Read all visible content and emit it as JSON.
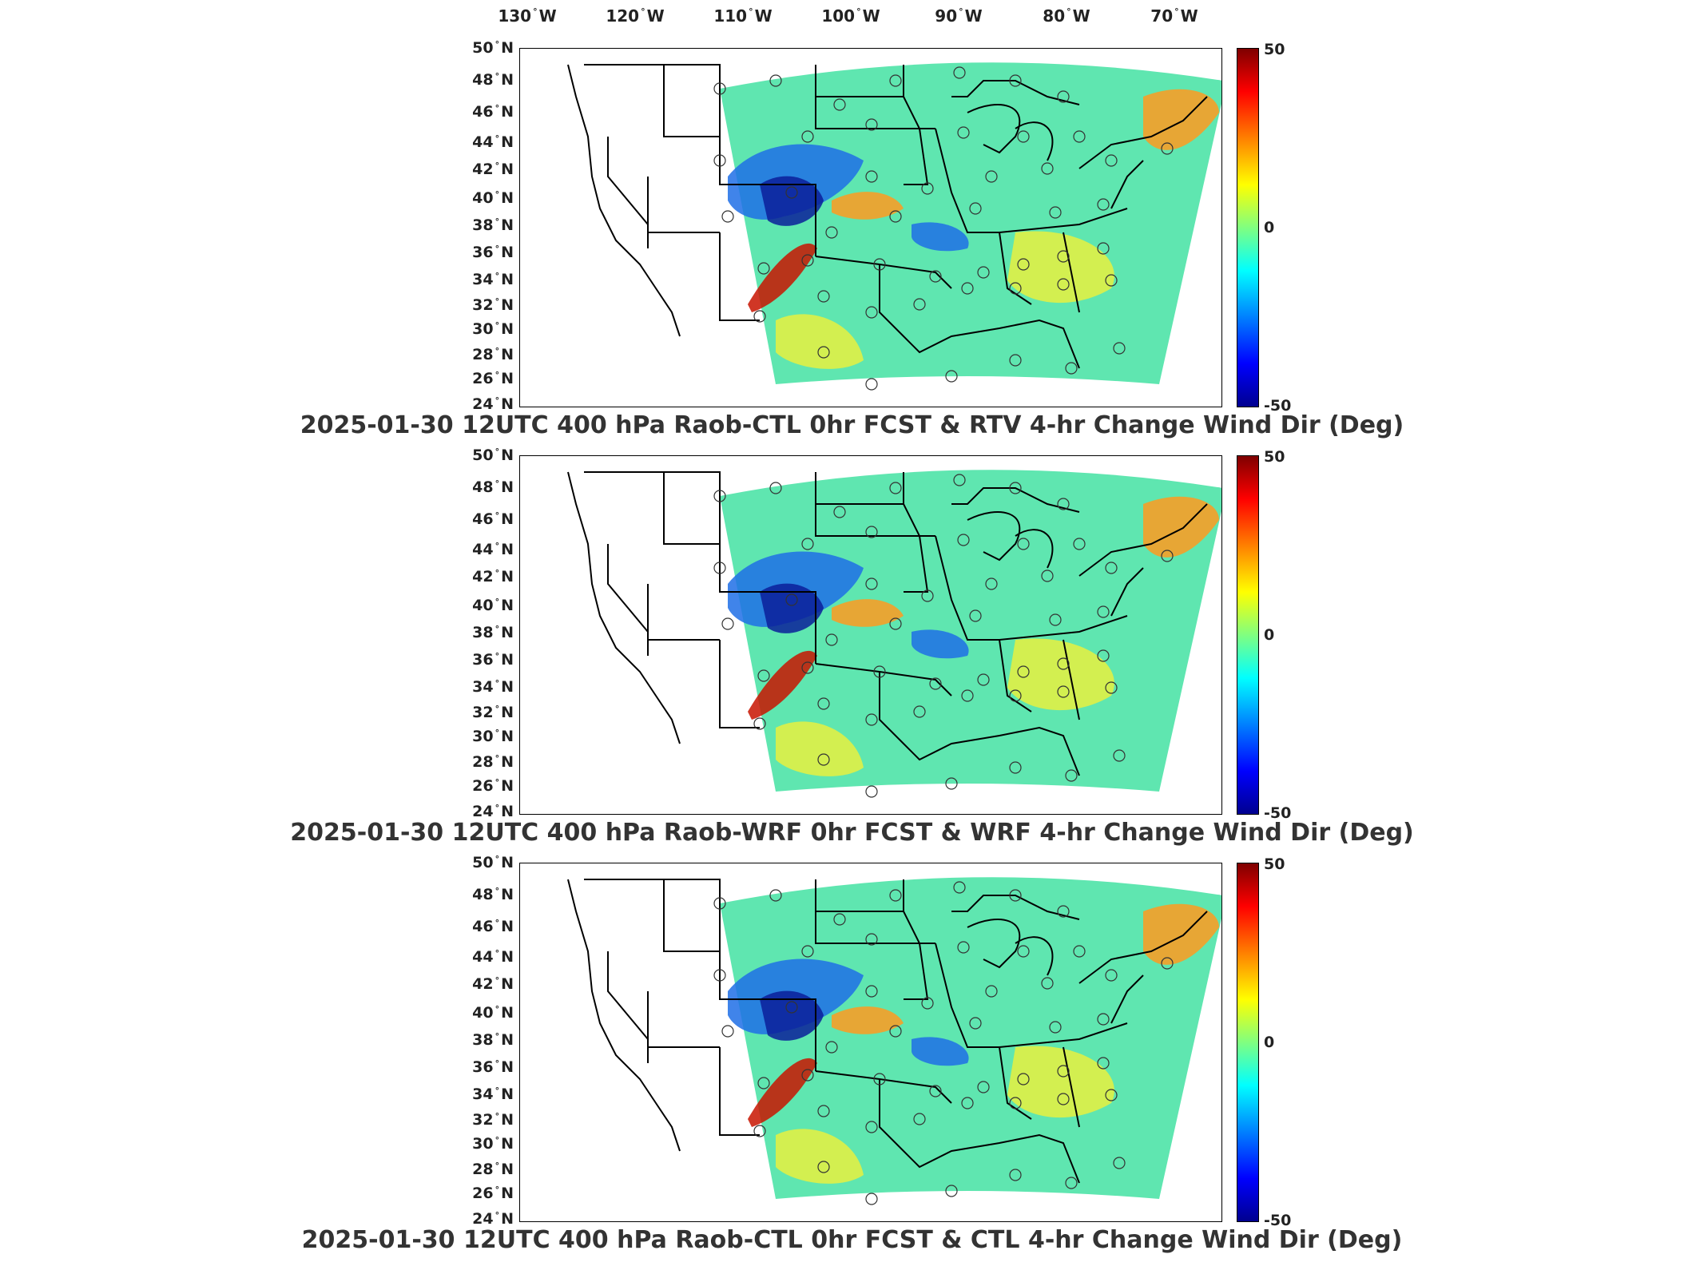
{
  "longitude_labels": [
    "130",
    "120",
    "110",
    "100",
    "90",
    "80",
    "70"
  ],
  "longitude_hemisphere": "W",
  "latitude_labels": [
    "50",
    "48",
    "46",
    "44",
    "42",
    "40",
    "38",
    "36",
    "34",
    "32",
    "30",
    "28",
    "26",
    "24"
  ],
  "latitude_hemisphere": "N",
  "degree_symbol": "°",
  "colorbar": {
    "max": "50",
    "mid": "0",
    "min": "-50",
    "colors": [
      "#7f0000",
      "#ff0000",
      "#ff8000",
      "#ffff00",
      "#80ff80",
      "#00ffff",
      "#0080ff",
      "#0000ff",
      "#00008f"
    ]
  },
  "panels": [
    {
      "title": "2025-01-30 12UTC 400 hPa Raob-CTL 0hr FCST & RTV 4-hr Change Wind Dir (Deg)"
    },
    {
      "title": "2025-01-30 12UTC 400 hPa Raob-WRF 0hr FCST & WRF 4-hr Change Wind Dir (Deg)"
    },
    {
      "title": "2025-01-30 12UTC 400 hPa Raob-CTL 0hr FCST & CTL 4-hr Change Wind Dir (Deg)"
    }
  ],
  "field_colors": {
    "background": "#5fe6b0",
    "strong_positive": "#c81400",
    "positive": "#ff9a20",
    "warm": "#e8f040",
    "negative": "#1e6ee6",
    "strong_negative": "#0a1e9a"
  }
}
